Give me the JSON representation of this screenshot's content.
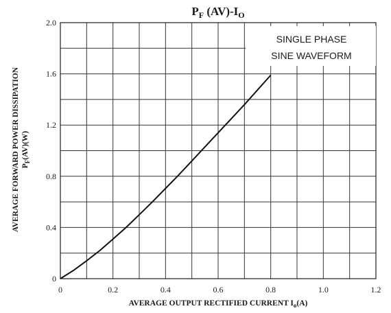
{
  "chart_data": {
    "type": "line",
    "title_main": "P",
    "title_sub": "F",
    "title_mid": " (AV)-I",
    "title_sub2": "O",
    "xlabel_main": "AVERAGE OUTPUT RECTIFIED CURRENT I",
    "xlabel_sub": "o",
    "xlabel_tail": "(A)",
    "ylabel_line1": "AVERAGE FORWARD POWER DISSIPATION",
    "ylabel_line2_main": "P",
    "ylabel_line2_sub": "F",
    "ylabel_line2_tail": "(AV)(W)",
    "annotation_line1": "SINGLE PHASE",
    "annotation_line2": "SINE WAVEFORM",
    "xlim": [
      0,
      1.2
    ],
    "ylim": [
      0,
      2.0
    ],
    "x_ticks": [
      0,
      0.2,
      0.4,
      0.6,
      0.8,
      1.0,
      1.2
    ],
    "x_tick_labels": [
      "0",
      "0.2",
      "0.4",
      "0.6",
      "0.8",
      "1.0",
      "1.2"
    ],
    "y_ticks": [
      0,
      0.4,
      0.8,
      1.2,
      1.6,
      2.0
    ],
    "y_tick_labels": [
      "0",
      "0.4",
      "0.8",
      "1.2",
      "1.6",
      "2.0"
    ],
    "x_grid_step": 0.1,
    "y_grid_step": 0.2,
    "grid": true,
    "series": [
      {
        "x": [
          0,
          0.05,
          0.1,
          0.15,
          0.2,
          0.25,
          0.3,
          0.35,
          0.4,
          0.45,
          0.5,
          0.55,
          0.6,
          0.65,
          0.7,
          0.75,
          0.8
        ],
        "y": [
          0,
          0.065,
          0.14,
          0.22,
          0.31,
          0.4,
          0.5,
          0.6,
          0.705,
          0.81,
          0.92,
          1.03,
          1.14,
          1.25,
          1.36,
          1.475,
          1.59
        ]
      }
    ]
  }
}
